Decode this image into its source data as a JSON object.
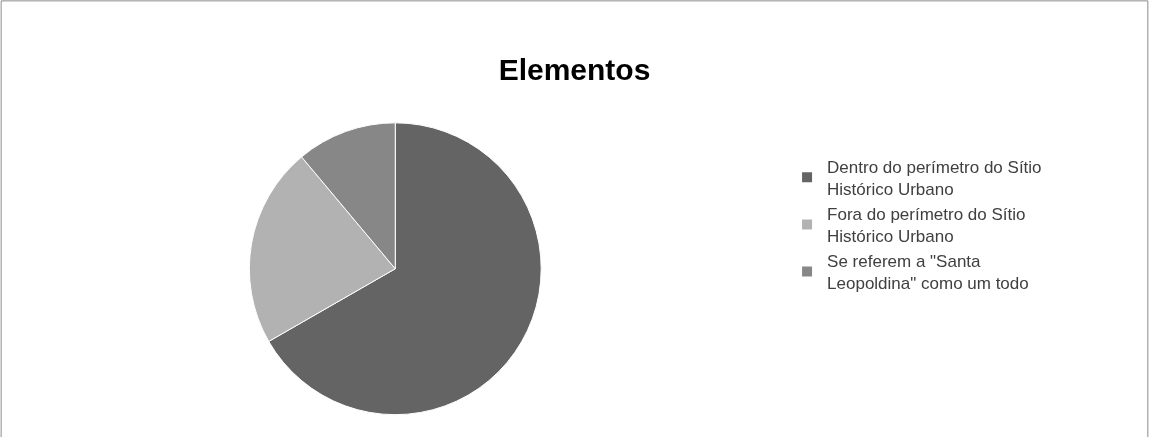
{
  "chart_data": {
    "type": "pie",
    "title": "Elementos",
    "categories": [
      "Dentro do perímetro do Sítio Histórico Urbano",
      "Fora do perímetro do Sítio Histórico Urbano",
      "Se referem a \"Santa Leopoldina\" como um todo"
    ],
    "values": [
      66.7,
      22.2,
      11.1
    ],
    "colors": [
      "#646464",
      "#b2b2b2",
      "#878787"
    ],
    "legend": "right"
  }
}
